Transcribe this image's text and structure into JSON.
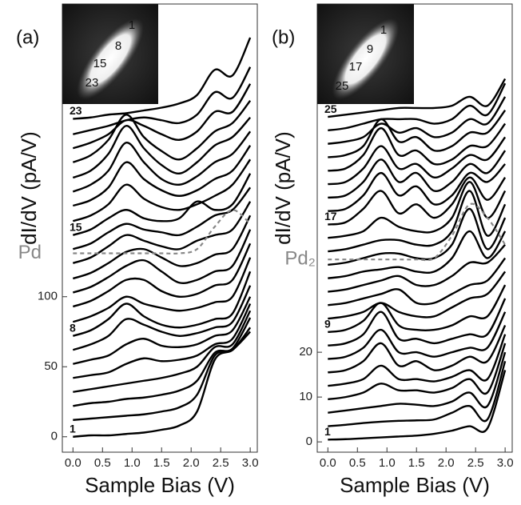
{
  "chart_data": [
    {
      "type": "line",
      "panel_label": "(a)",
      "ylabel": "dI/dV (pA/V)",
      "xlabel": "Sample Bias (V)",
      "inset_labels": [
        "1",
        "8",
        "15",
        "23"
      ],
      "x": [
        0,
        0.3,
        0.6,
        0.9,
        1.2,
        1.5,
        1.8,
        2.1,
        2.4,
        2.7,
        3.0
      ],
      "xlim": [
        -0.18,
        3.12
      ],
      "ylim": [
        -11,
        309
      ],
      "xticks": [
        {
          "value": 0,
          "label": "0.0"
        },
        0.5,
        {
          "value": 1,
          "label": "1.0"
        },
        1.5,
        {
          "value": 2,
          "label": "2.0"
        },
        2.5,
        {
          "value": 3,
          "label": "3.0"
        }
      ],
      "yticks": [
        0,
        50,
        100
      ],
      "series": [
        {
          "name": "1",
          "color": "#000",
          "values": [
            0,
            1,
            1,
            2,
            3,
            5,
            8,
            18,
            55,
            62,
            75
          ]
        },
        {
          "color": "#000",
          "values": [
            12,
            13,
            14,
            15,
            16,
            18,
            21,
            30,
            58,
            62,
            78
          ]
        },
        {
          "color": "#000",
          "values": [
            22,
            24,
            25,
            27,
            28,
            30,
            33,
            40,
            60,
            63,
            85
          ]
        },
        {
          "color": "#000",
          "values": [
            32,
            34,
            36,
            38,
            40,
            42,
            45,
            50,
            64,
            66,
            90
          ]
        },
        {
          "color": "#000",
          "values": [
            42,
            44,
            46,
            52,
            56,
            54,
            55,
            58,
            66,
            70,
            95
          ]
        },
        {
          "color": "#000",
          "values": [
            52,
            55,
            58,
            66,
            70,
            65,
            64,
            66,
            72,
            76,
            100
          ]
        },
        {
          "color": "#000",
          "values": [
            62,
            66,
            72,
            84,
            80,
            75,
            72,
            74,
            78,
            82,
            108
          ]
        },
        {
          "name": "8",
          "color": "#000",
          "values": [
            72,
            76,
            84,
            95,
            86,
            80,
            78,
            80,
            84,
            88,
            118
          ]
        },
        {
          "color": "#000",
          "values": [
            82,
            86,
            92,
            100,
            95,
            92,
            90,
            92,
            96,
            100,
            128
          ]
        },
        {
          "color": "#000",
          "values": [
            93,
            97,
            104,
            112,
            112,
            104,
            100,
            102,
            108,
            112,
            138
          ]
        },
        {
          "color": "#000",
          "values": [
            103,
            107,
            114,
            122,
            126,
            118,
            110,
            112,
            118,
            122,
            148
          ]
        },
        {
          "color": "#000",
          "values": [
            113,
            117,
            124,
            132,
            134,
            128,
            122,
            124,
            130,
            134,
            158
          ]
        },
        {
          "color": "#000",
          "values": [
            124,
            128,
            136,
            144,
            140,
            136,
            134,
            140,
            144,
            148,
            168
          ]
        },
        {
          "color": "#000",
          "values": [
            134,
            138,
            146,
            152,
            148,
            146,
            144,
            150,
            158,
            162,
            178
          ]
        },
        {
          "name": "15",
          "color": "#000",
          "values": [
            144,
            148,
            156,
            162,
            156,
            154,
            156,
            168,
            162,
            166,
            188
          ]
        },
        {
          "color": "#000",
          "values": [
            154,
            158,
            166,
            180,
            170,
            164,
            162,
            166,
            172,
            180,
            198
          ]
        },
        {
          "color": "#000",
          "values": [
            165,
            169,
            178,
            196,
            184,
            176,
            172,
            176,
            184,
            190,
            208
          ]
        },
        {
          "color": "#000",
          "values": [
            175,
            180,
            190,
            210,
            196,
            184,
            180,
            186,
            196,
            202,
            218
          ]
        },
        {
          "color": "#000",
          "values": [
            185,
            190,
            202,
            222,
            206,
            194,
            188,
            196,
            208,
            214,
            228
          ]
        },
        {
          "color": "#000",
          "values": [
            196,
            201,
            212,
            230,
            214,
            204,
            198,
            206,
            218,
            224,
            240
          ]
        },
        {
          "color": "#000",
          "values": [
            206,
            210,
            216,
            226,
            222,
            216,
            212,
            218,
            232,
            232,
            252
          ]
        },
        {
          "color": "#000",
          "values": [
            216,
            219,
            222,
            226,
            228,
            226,
            224,
            230,
            246,
            242,
            264
          ]
        },
        {
          "name": "23",
          "color": "#000",
          "values": [
            227,
            228,
            230,
            231,
            233,
            235,
            238,
            244,
            262,
            258,
            285
          ]
        },
        {
          "name": "Pd",
          "color": "#888",
          "dashed": true,
          "values": [
            131,
            131,
            131,
            131,
            131,
            131,
            131,
            134,
            150,
            162,
            152
          ]
        }
      ]
    },
    {
      "type": "line",
      "panel_label": "(b)",
      "ylabel": "dI/dV (pA/V)",
      "xlabel": "Sample Bias (V)",
      "inset_labels": [
        "1",
        "9",
        "17",
        "25"
      ],
      "x": [
        0,
        0.3,
        0.6,
        0.9,
        1.2,
        1.5,
        1.8,
        2.1,
        2.4,
        2.7,
        3.0
      ],
      "xlim": [
        -0.18,
        3.12
      ],
      "ylim": [
        -2.3,
        97.7
      ],
      "xticks": [
        {
          "value": 0,
          "label": "0.0"
        },
        0.5,
        {
          "value": 1,
          "label": "1.0"
        },
        1.5,
        {
          "value": 2,
          "label": "2.0"
        },
        2.5,
        {
          "value": 3,
          "label": "3.0"
        }
      ],
      "yticks": [
        0,
        10,
        20
      ],
      "series": [
        {
          "name": "1",
          "color": "#000",
          "values": [
            0.5,
            0.6,
            0.8,
            1,
            1.2,
            1.4,
            1.8,
            2.5,
            3.5,
            3,
            16
          ]
        },
        {
          "color": "#000",
          "values": [
            3.5,
            3.8,
            4.2,
            4.5,
            4.7,
            4.8,
            5,
            6.5,
            8,
            5,
            18
          ]
        },
        {
          "color": "#000",
          "values": [
            6.5,
            7,
            7.5,
            8,
            8.5,
            8.3,
            8,
            9,
            11,
            8,
            20
          ]
        },
        {
          "color": "#000",
          "values": [
            9.5,
            10,
            11,
            13,
            11.5,
            11.5,
            11,
            12,
            14,
            11,
            22
          ]
        },
        {
          "color": "#000",
          "values": [
            12.5,
            13,
            14,
            17,
            14,
            14,
            13.5,
            14.5,
            16,
            14,
            24
          ]
        },
        {
          "color": "#000",
          "values": [
            15.5,
            16,
            18,
            22,
            17,
            18,
            16,
            17,
            19,
            18,
            26
          ]
        },
        {
          "color": "#000",
          "values": [
            18.5,
            19,
            21,
            25,
            20,
            20,
            19,
            20,
            21,
            21,
            29
          ]
        },
        {
          "color": "#000",
          "values": [
            21.5,
            22,
            24,
            29,
            23,
            23,
            22,
            23,
            24,
            24,
            32
          ]
        },
        {
          "name": "9",
          "color": "#000",
          "values": [
            24.5,
            25,
            27,
            31,
            26,
            25,
            25,
            26,
            28,
            28,
            35
          ]
        },
        {
          "color": "#000",
          "values": [
            27.5,
            28,
            29,
            31,
            29,
            28,
            28,
            30,
            32,
            33,
            38
          ]
        },
        {
          "color": "#000",
          "values": [
            30.5,
            31,
            32,
            33,
            34,
            31,
            31,
            33,
            35,
            36,
            41
          ]
        },
        {
          "color": "#000",
          "values": [
            33.5,
            34,
            35,
            36,
            37,
            35,
            35,
            37,
            40,
            40,
            44
          ]
        },
        {
          "color": "#000",
          "values": [
            36.5,
            37,
            38,
            38.5,
            39,
            38,
            38,
            41,
            47,
            41,
            47
          ]
        },
        {
          "color": "#000",
          "values": [
            39.5,
            40,
            41,
            42,
            42,
            41,
            41,
            44,
            52,
            43,
            50
          ]
        },
        {
          "color": "#000",
          "values": [
            42.5,
            43,
            44,
            45,
            45,
            44,
            44,
            47,
            56,
            46,
            53
          ]
        },
        {
          "color": "#000",
          "values": [
            45.5,
            46,
            47,
            50,
            48,
            47,
            47,
            50,
            58,
            50,
            56
          ]
        },
        {
          "name": "17",
          "color": "#000",
          "values": [
            48.5,
            49,
            52,
            56,
            51,
            53,
            50,
            53,
            59,
            54,
            59
          ]
        },
        {
          "color": "#000",
          "values": [
            51.5,
            52,
            55,
            60,
            55,
            57,
            53,
            55,
            60,
            58,
            62
          ]
        },
        {
          "color": "#000",
          "values": [
            54.5,
            55,
            58,
            63,
            58,
            60,
            56,
            58,
            62,
            60,
            65
          ]
        },
        {
          "color": "#000",
          "values": [
            57.5,
            58,
            61,
            66,
            61,
            62,
            59,
            61,
            64,
            63,
            68
          ]
        },
        {
          "color": "#000",
          "values": [
            60.5,
            61,
            64,
            70,
            64,
            65,
            62,
            63,
            66,
            66,
            71
          ]
        },
        {
          "color": "#000",
          "values": [
            63.5,
            64,
            66,
            72,
            67,
            68,
            65,
            66,
            69,
            69,
            74
          ]
        },
        {
          "color": "#000",
          "values": [
            66.5,
            67,
            68,
            71,
            69,
            70,
            68,
            69,
            72,
            71,
            77
          ]
        },
        {
          "color": "#000",
          "values": [
            69.5,
            70,
            71,
            72,
            72,
            72,
            71,
            72,
            75,
            73,
            80
          ]
        },
        {
          "name": "25",
          "color": "#000",
          "values": [
            72.5,
            73,
            73.5,
            74,
            74.5,
            74.5,
            74.5,
            75,
            77,
            75,
            81
          ]
        },
        {
          "name": "Pd₂",
          "color": "#888",
          "dashed": true,
          "values": [
            40.7,
            40.7,
            40.7,
            40.7,
            40.7,
            40.7,
            41,
            46,
            53,
            50,
            44
          ]
        }
      ]
    }
  ]
}
